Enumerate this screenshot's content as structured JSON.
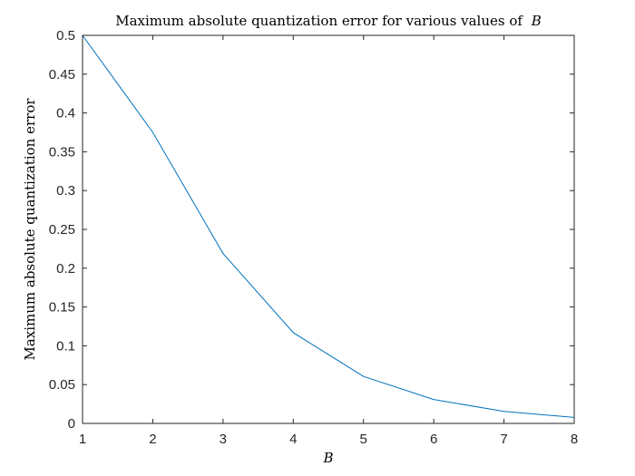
{
  "chart_data": {
    "type": "line",
    "title": {
      "main": "Maximum absolute quantization error for various values of",
      "variable": "B"
    },
    "xlabel": "B",
    "ylabel": "Maximum absolute quantization error",
    "x": [
      1,
      2,
      3,
      4,
      5,
      6,
      7,
      8
    ],
    "series": [
      {
        "values": [
          0.5,
          0.375,
          0.219,
          0.117,
          0.0605,
          0.0308,
          0.0155,
          0.0078
        ],
        "color": "#0072BD"
      }
    ],
    "xlim": [
      1,
      8
    ],
    "ylim": [
      0,
      0.5
    ],
    "xticks": [
      1,
      2,
      3,
      4,
      5,
      6,
      7,
      8
    ],
    "xtick_labels": [
      "1",
      "2",
      "3",
      "4",
      "5",
      "6",
      "7",
      "8"
    ],
    "yticks": [
      0,
      0.05,
      0.1,
      0.15,
      0.2,
      0.25,
      0.3,
      0.35,
      0.4,
      0.45,
      0.5
    ],
    "ytick_labels": [
      "0",
      "0.05",
      "0.1",
      "0.15",
      "0.2",
      "0.25",
      "0.3",
      "0.35",
      "0.4",
      "0.45",
      "0.5"
    ],
    "grid": false,
    "box": true
  }
}
